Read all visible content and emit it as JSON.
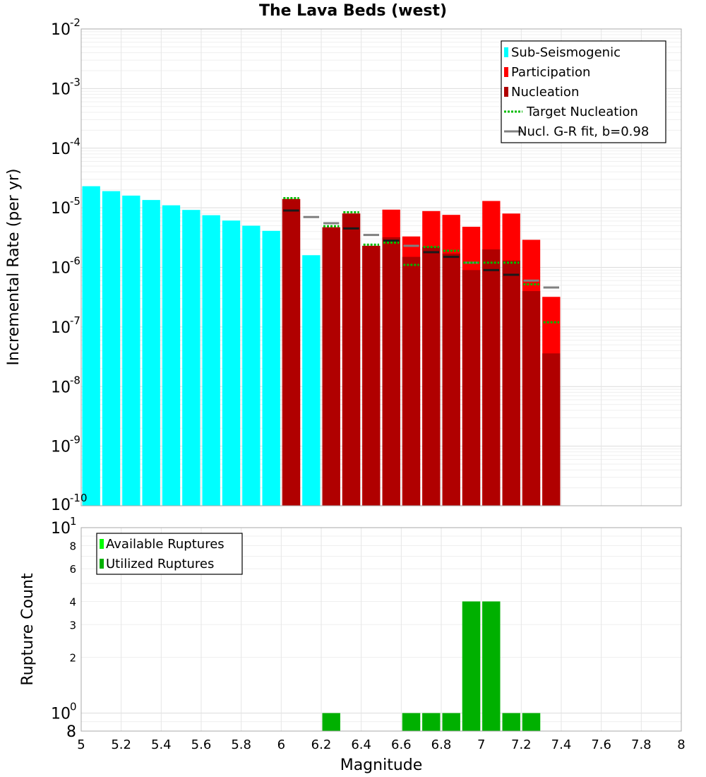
{
  "chart_data": [
    {
      "type": "bar",
      "title": "The Lava Beds (west)",
      "ylabel": "Incremental Rate (per yr)",
      "yscale": "log",
      "xlim": [
        5,
        8
      ],
      "ylim": [
        1e-10,
        0.01
      ],
      "grid": true,
      "legend_position": "top-right",
      "y_ticks": [
        {
          "base": "10",
          "exp": "-2"
        },
        {
          "base": "10",
          "exp": "-3"
        },
        {
          "base": "10",
          "exp": "-4"
        },
        {
          "base": "10",
          "exp": "-5"
        },
        {
          "base": "10",
          "exp": "-6"
        },
        {
          "base": "10",
          "exp": "-7"
        },
        {
          "base": "10",
          "exp": "-8"
        },
        {
          "base": "10",
          "exp": "-9"
        },
        {
          "base": "10",
          "exp": "-10"
        }
      ],
      "legend": [
        {
          "label": "Sub-Seismogenic",
          "color": "#00ffff",
          "kind": "bar"
        },
        {
          "label": "Participation",
          "color": "#ff0000",
          "kind": "bar"
        },
        {
          "label": "Nucleation",
          "color": "#b00000",
          "kind": "bar"
        },
        {
          "label": "Target Nucleation",
          "color": "#00bb00",
          "kind": "dotted"
        },
        {
          "label": "Nucl. G-R fit, b=0.98",
          "color": "#808080",
          "kind": "line"
        }
      ],
      "series": [
        {
          "name": "Sub-Seismogenic",
          "color": "#00ffff",
          "x": [
            5.05,
            5.15,
            5.25,
            5.35,
            5.45,
            5.55,
            5.65,
            5.75,
            5.85,
            5.95,
            6.15
          ],
          "values": [
            2.3e-05,
            1.9e-05,
            1.6e-05,
            1.35e-05,
            1.1e-05,
            9.2e-06,
            7.5e-06,
            6.1e-06,
            5e-06,
            4.1e-06,
            1.6e-06
          ]
        },
        {
          "name": "Participation",
          "color": "#ff0000",
          "x": [
            6.05,
            6.25,
            6.35,
            6.45,
            6.55,
            6.65,
            6.75,
            6.85,
            6.95,
            7.05,
            7.15,
            7.25,
            7.35
          ],
          "values": [
            1.4e-05,
            4.7e-06,
            8e-06,
            2.3e-06,
            9.3e-06,
            3.3e-06,
            8.8e-06,
            7.6e-06,
            4.8e-06,
            1.3e-05,
            8e-06,
            2.9e-06,
            3.2e-07
          ]
        },
        {
          "name": "Nucleation",
          "color": "#b00000",
          "x": [
            6.05,
            6.25,
            6.35,
            6.45,
            6.55,
            6.65,
            6.75,
            6.85,
            6.95,
            7.05,
            7.15,
            7.25,
            7.35
          ],
          "values": [
            1.4e-05,
            4.7e-06,
            8e-06,
            2.3e-06,
            3.2e-06,
            1.5e-06,
            2.2e-06,
            1.7e-06,
            9e-07,
            2e-06,
            1.3e-06,
            4e-07,
            3.6e-08
          ]
        },
        {
          "name": "Target Nucleation",
          "color": "#00bb00",
          "x": [
            6.05,
            6.25,
            6.35,
            6.45,
            6.55,
            6.65,
            6.75,
            6.85,
            6.95,
            7.05,
            7.15,
            7.25,
            7.35
          ],
          "values": [
            1.45e-05,
            4.9e-06,
            8.4e-06,
            2.4e-06,
            2.6e-06,
            1.1e-06,
            2.2e-06,
            1.9e-06,
            1.2e-06,
            1.2e-06,
            1.2e-06,
            5.2e-07,
            1.2e-07
          ]
        },
        {
          "name": "Nucl. G-R fit, b=0.98",
          "color": "#808080",
          "x": [
            6.05,
            6.15,
            6.25,
            6.35,
            6.45,
            6.55,
            6.65,
            6.75,
            6.85,
            6.95,
            7.05,
            7.15,
            7.25,
            7.35
          ],
          "values": [
            9e-06,
            7e-06,
            5.5e-06,
            4.5e-06,
            3.5e-06,
            2.8e-06,
            2.3e-06,
            1.8e-06,
            1.5e-06,
            1.2e-06,
            9e-07,
            7.5e-07,
            6e-07,
            4.6e-07
          ]
        }
      ]
    },
    {
      "type": "bar",
      "xlabel": "Magnitude",
      "ylabel": "Rupture Count",
      "yscale": "log",
      "xlim": [
        5,
        8
      ],
      "ylim": [
        0.8,
        10
      ],
      "grid": true,
      "legend_position": "top-left",
      "x_ticks": [
        "5",
        "5.2",
        "5.4",
        "5.6",
        "5.8",
        "6",
        "6.2",
        "6.4",
        "6.6",
        "6.8",
        "7",
        "7.2",
        "7.4",
        "7.6",
        "7.8",
        "8"
      ],
      "y_ticks_minor": [
        {
          "value": 8,
          "label": "8"
        },
        {
          "value": 6,
          "label": "6"
        },
        {
          "value": 4,
          "label": "4"
        },
        {
          "value": 3,
          "label": "3"
        },
        {
          "value": 2,
          "label": "2"
        }
      ],
      "y_ticks_major": [
        {
          "value": 10,
          "base": "10",
          "exp": "1"
        },
        {
          "value": 1,
          "base": "10",
          "exp": "0"
        }
      ],
      "y_bottom_label": "8",
      "legend": [
        {
          "label": "Available Ruptures",
          "color": "#00ff00",
          "kind": "bar"
        },
        {
          "label": "Utilized Ruptures",
          "color": "#00b000",
          "kind": "bar"
        }
      ],
      "series": [
        {
          "name": "Available Ruptures",
          "color": "#00ff00",
          "x": [
            6.25,
            6.65,
            6.75,
            6.85,
            6.95,
            7.05,
            7.15,
            7.25
          ],
          "values": [
            1,
            1,
            1,
            1,
            4,
            4,
            1,
            1
          ]
        },
        {
          "name": "Utilized Ruptures",
          "color": "#00b000",
          "x": [
            6.25,
            6.65,
            6.75,
            6.85,
            6.95,
            7.05,
            7.15,
            7.25
          ],
          "values": [
            1,
            1,
            1,
            1,
            4,
            4,
            1,
            1
          ]
        }
      ]
    }
  ]
}
